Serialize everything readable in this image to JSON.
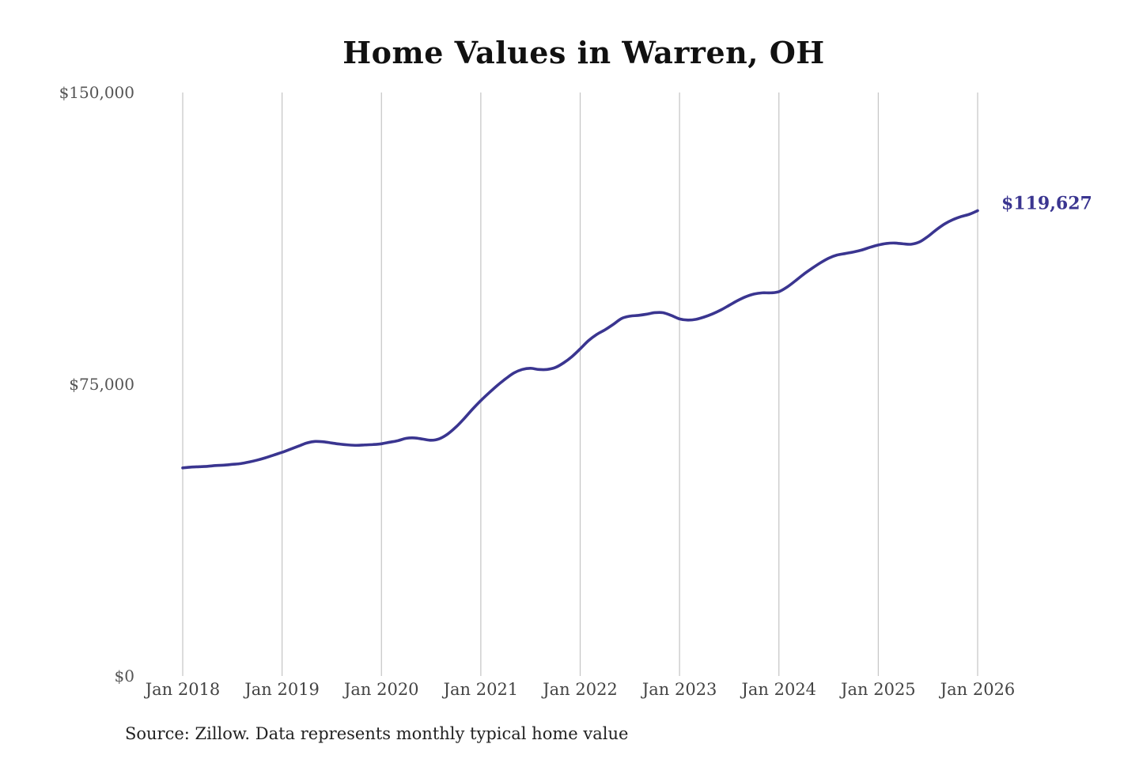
{
  "chart_data": {
    "type": "line",
    "title": "Home Values in Warren, OH",
    "source": "Source: Zillow. Data represents monthly typical home value",
    "xlabel": "",
    "ylabel": "",
    "x_ticks": [
      "Jan 2018",
      "Jan 2019",
      "Jan 2020",
      "Jan 2021",
      "Jan 2022",
      "Jan 2023",
      "Jan 2024",
      "Jan 2025",
      "Jan 2026"
    ],
    "y_ticks": [
      "$0",
      "$75,000",
      "$150,000"
    ],
    "ylim": [
      0,
      150000
    ],
    "xlim": [
      "Jan 2018",
      "Jan 2026"
    ],
    "grid": "vertical",
    "last_value_label": "$119,627",
    "series": [
      {
        "color": "#3a3590",
        "x": [
          "Jan 2018",
          "Feb 2018",
          "Mar 2018",
          "Apr 2018",
          "May 2018",
          "Jun 2018",
          "Jul 2018",
          "Aug 2018",
          "Sep 2018",
          "Oct 2018",
          "Nov 2018",
          "Dec 2018",
          "Jan 2019",
          "Feb 2019",
          "Mar 2019",
          "Apr 2019",
          "May 2019",
          "Jun 2019",
          "Jul 2019",
          "Aug 2019",
          "Sep 2019",
          "Oct 2019",
          "Nov 2019",
          "Dec 2019",
          "Jan 2020",
          "Feb 2020",
          "Mar 2020",
          "Apr 2020",
          "May 2020",
          "Jun 2020",
          "Jul 2020",
          "Aug 2020",
          "Sep 2020",
          "Oct 2020",
          "Nov 2020",
          "Dec 2020",
          "Jan 2021",
          "Feb 2021",
          "Mar 2021",
          "Apr 2021",
          "May 2021",
          "Jun 2021",
          "Jul 2021",
          "Aug 2021",
          "Sep 2021",
          "Oct 2021",
          "Nov 2021",
          "Dec 2021",
          "Jan 2022",
          "Feb 2022",
          "Mar 2022",
          "Apr 2022",
          "May 2022",
          "Jun 2022",
          "Jul 2022",
          "Aug 2022",
          "Sep 2022",
          "Oct 2022",
          "Nov 2022",
          "Dec 2022",
          "Jan 2023",
          "Feb 2023",
          "Mar 2023",
          "Apr 2023",
          "May 2023",
          "Jun 2023",
          "Jul 2023",
          "Aug 2023",
          "Sep 2023",
          "Oct 2023",
          "Nov 2023",
          "Dec 2023",
          "Jan 2024",
          "Feb 2024",
          "Mar 2024",
          "Apr 2024",
          "May 2024",
          "Jun 2024",
          "Jul 2024",
          "Aug 2024",
          "Sep 2024",
          "Oct 2024",
          "Nov 2024",
          "Dec 2024",
          "Jan 2025",
          "Feb 2025",
          "Mar 2025",
          "Apr 2025",
          "May 2025",
          "Jun 2025",
          "Jul 2025",
          "Aug 2025",
          "Sep 2025",
          "Oct 2025",
          "Nov 2025",
          "Dec 2025",
          "Jan 2026"
        ],
        "values": [
          53500,
          53700,
          53800,
          53900,
          54100,
          54200,
          54400,
          54600,
          55000,
          55500,
          56100,
          56800,
          57500,
          58300,
          59100,
          59900,
          60300,
          60200,
          59900,
          59600,
          59400,
          59300,
          59400,
          59500,
          59700,
          60100,
          60500,
          61100,
          61200,
          60900,
          60600,
          61000,
          62200,
          64000,
          66200,
          68600,
          70800,
          72800,
          74700,
          76400,
          77900,
          78800,
          79100,
          78800,
          78800,
          79300,
          80500,
          82100,
          84100,
          86200,
          87800,
          89000,
          90400,
          91900,
          92500,
          92700,
          93000,
          93400,
          93400,
          92700,
          91800,
          91500,
          91700,
          92300,
          93100,
          94100,
          95300,
          96500,
          97500,
          98200,
          98500,
          98500,
          98800,
          100000,
          101600,
          103300,
          104800,
          106200,
          107400,
          108200,
          108600,
          109000,
          109500,
          110200,
          110800,
          111200,
          111300,
          111100,
          111000,
          111600,
          113000,
          114700,
          116200,
          117300,
          118100,
          118700,
          119627
        ]
      }
    ]
  }
}
